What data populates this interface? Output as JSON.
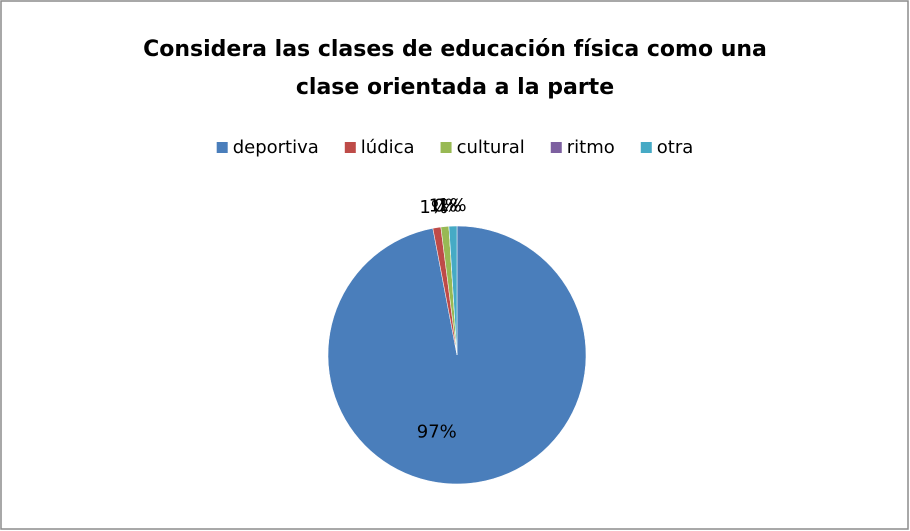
{
  "chart_data": {
    "type": "pie",
    "title": [
      "Considera las clases de educación física como una",
      "clase orientada a la parte"
    ],
    "categories": [
      "deportiva",
      "lúdica",
      "cultural",
      "ritmo",
      "otra"
    ],
    "values": [
      97,
      1,
      1,
      0,
      1
    ],
    "value_labels": [
      "97%",
      "1%",
      "1%",
      "0%",
      "1%"
    ],
    "colors": [
      "#4a7ebb",
      "#be4b48",
      "#98b954",
      "#7d60a0",
      "#46aac5"
    ],
    "legend": "top"
  }
}
